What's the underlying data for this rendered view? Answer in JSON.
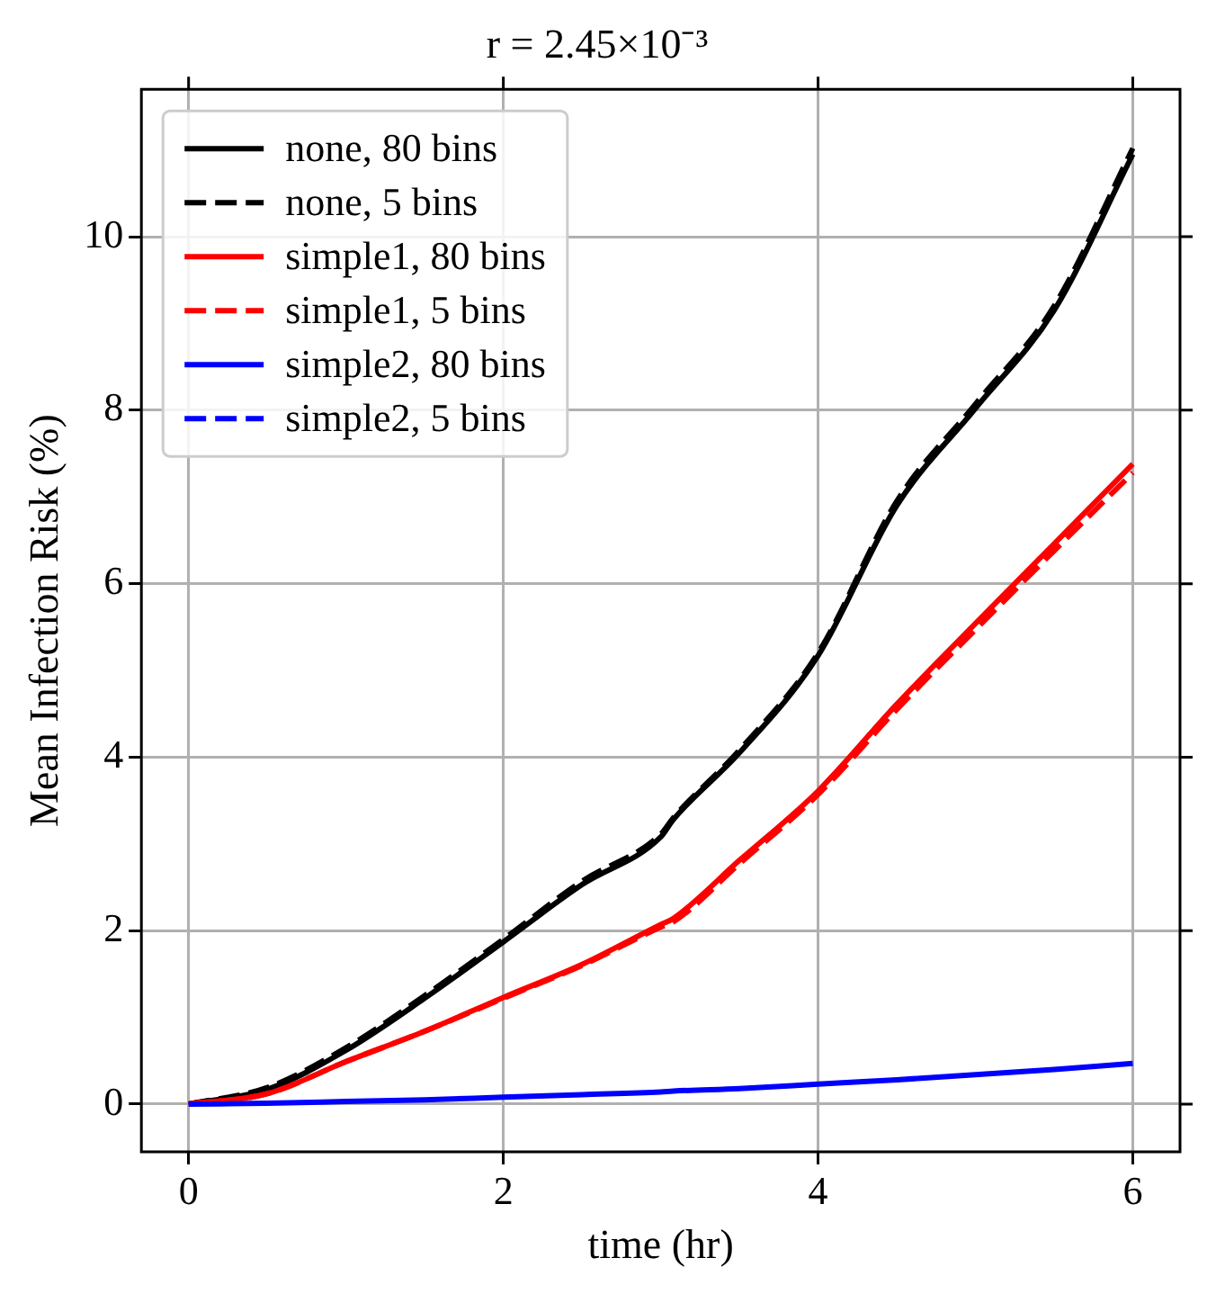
{
  "chart_data": {
    "type": "line",
    "title": "r = 2.45×10⁻³",
    "xlabel": "time (hr)",
    "ylabel": "Mean Infection Risk (%)",
    "x": [
      0,
      0.5,
      1,
      1.5,
      2,
      2.5,
      3,
      3.08,
      3.5,
      4,
      4.5,
      5,
      5.5,
      6
    ],
    "series": [
      {
        "name": "none, 80 bins",
        "color": "#000000",
        "line_style": "solid",
        "values": [
          0,
          0.17,
          0.62,
          1.22,
          1.87,
          2.53,
          3.08,
          3.28,
          4.05,
          5.17,
          6.9,
          8.02,
          9.15,
          10.95
        ]
      },
      {
        "name": "none, 5 bins",
        "color": "#000000",
        "line_style": "dashed",
        "values": [
          0,
          0.19,
          0.65,
          1.25,
          1.9,
          2.57,
          3.11,
          3.3,
          4.08,
          5.2,
          6.95,
          8.07,
          9.2,
          11.02
        ]
      },
      {
        "name": "simple1, 80 bins",
        "color": "#ff0000",
        "line_style": "solid",
        "values": [
          0,
          0.12,
          0.49,
          0.84,
          1.23,
          1.61,
          2.07,
          2.14,
          2.81,
          3.61,
          4.61,
          5.54,
          6.46,
          7.38
        ]
      },
      {
        "name": "simple1, 5 bins",
        "color": "#ff0000",
        "line_style": "dashed",
        "values": [
          0,
          0.12,
          0.49,
          0.84,
          1.22,
          1.6,
          2.04,
          2.1,
          2.77,
          3.57,
          4.55,
          5.47,
          6.38,
          7.28
        ]
      },
      {
        "name": "simple2, 80 bins",
        "color": "#0000ff",
        "line_style": "solid",
        "values": [
          0,
          0.01,
          0.03,
          0.05,
          0.08,
          0.11,
          0.14,
          0.15,
          0.18,
          0.23,
          0.28,
          0.34,
          0.4,
          0.47
        ]
      },
      {
        "name": "simple2, 5 bins",
        "color": "#0000ff",
        "line_style": "dashed",
        "values": [
          null,
          null,
          null,
          null,
          null,
          null,
          null,
          null,
          null,
          null,
          null,
          null,
          null,
          null
        ]
      }
    ],
    "xlim": [
      -0.3,
      6.3
    ],
    "xticks": [
      0,
      2,
      4,
      6
    ],
    "ylim": [
      -0.55,
      11.7
    ],
    "yticks": [
      0,
      2,
      4,
      6,
      8,
      10
    ],
    "grid": true,
    "legend": "top left",
    "marker": "none"
  }
}
